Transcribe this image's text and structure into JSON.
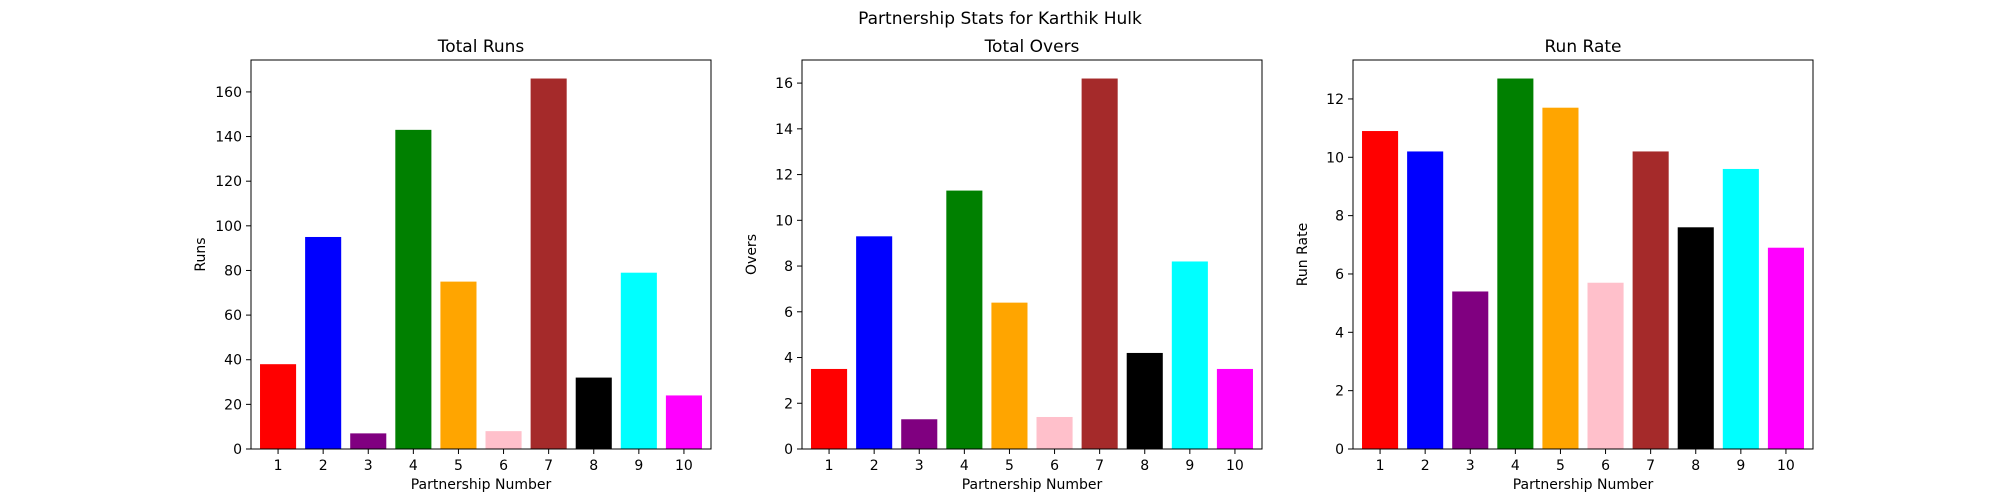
{
  "figure": {
    "suptitle": "Partnership Stats for Karthik Hulk"
  },
  "chart_data": [
    {
      "type": "bar",
      "title": "Total Runs",
      "xlabel": "Partnership Number",
      "ylabel": "Runs",
      "categories": [
        "1",
        "2",
        "3",
        "4",
        "5",
        "6",
        "7",
        "8",
        "9",
        "10"
      ],
      "values": [
        38,
        95,
        7,
        143,
        75,
        8,
        166,
        32,
        79,
        24
      ],
      "colors": [
        "#ff0000",
        "#0000ff",
        "#800080",
        "#008000",
        "#ffa500",
        "#ffc0cb",
        "#a52a2a",
        "#000000",
        "#00ffff",
        "#ff00ff"
      ],
      "ylim": [
        0,
        174.3
      ],
      "yticks": [
        0,
        20,
        40,
        60,
        80,
        100,
        120,
        140,
        160
      ],
      "grid": false
    },
    {
      "type": "bar",
      "title": "Total Overs",
      "xlabel": "Partnership Number",
      "ylabel": "Overs",
      "categories": [
        "1",
        "2",
        "3",
        "4",
        "5",
        "6",
        "7",
        "8",
        "9",
        "10"
      ],
      "values": [
        3.5,
        9.3,
        1.3,
        11.3,
        6.4,
        1.4,
        16.2,
        4.2,
        8.2,
        3.5
      ],
      "colors": [
        "#ff0000",
        "#0000ff",
        "#800080",
        "#008000",
        "#ffa500",
        "#ffc0cb",
        "#a52a2a",
        "#000000",
        "#00ffff",
        "#ff00ff"
      ],
      "ylim": [
        0,
        17.01
      ],
      "yticks": [
        0,
        2,
        4,
        6,
        8,
        10,
        12,
        14,
        16
      ],
      "grid": false
    },
    {
      "type": "bar",
      "title": "Run Rate",
      "xlabel": "Partnership Number",
      "ylabel": "Run Rate",
      "categories": [
        "1",
        "2",
        "3",
        "4",
        "5",
        "6",
        "7",
        "8",
        "9",
        "10"
      ],
      "values": [
        10.9,
        10.2,
        5.4,
        12.7,
        11.7,
        5.7,
        10.2,
        7.6,
        9.6,
        6.9
      ],
      "colors": [
        "#ff0000",
        "#0000ff",
        "#800080",
        "#008000",
        "#ffa500",
        "#ffc0cb",
        "#a52a2a",
        "#000000",
        "#00ffff",
        "#ff00ff"
      ],
      "ylim": [
        0,
        13.335
      ],
      "yticks": [
        0,
        2,
        4,
        6,
        8,
        10,
        12
      ],
      "grid": false
    }
  ]
}
